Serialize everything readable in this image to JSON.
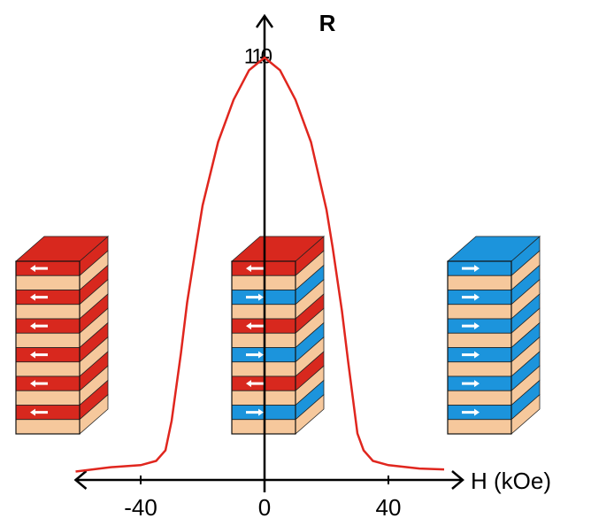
{
  "chart_data": {
    "type": "line",
    "title": "R",
    "x_label": "H (kOe)",
    "x": [
      -61,
      -50,
      -40,
      -35,
      -32,
      -30,
      -27,
      -25,
      -22,
      -20,
      -15,
      -10,
      -5,
      0,
      5,
      10,
      15,
      20,
      22,
      25,
      27,
      30,
      32,
      35,
      40,
      50,
      58
    ],
    "values": [
      100.2,
      100.3,
      100.35,
      100.45,
      100.7,
      101.4,
      103,
      104.2,
      105.6,
      106.5,
      108,
      109,
      109.7,
      110,
      109.7,
      109,
      108,
      106.4,
      105.5,
      104,
      102.8,
      101.1,
      100.7,
      100.45,
      100.35,
      100.27,
      100.25
    ],
    "color": "#e0261e",
    "xlim": [
      -61,
      64
    ],
    "xticks": [
      -40,
      0,
      40
    ],
    "ylim": [
      100,
      110
    ],
    "yticks": [
      110
    ]
  }
}
